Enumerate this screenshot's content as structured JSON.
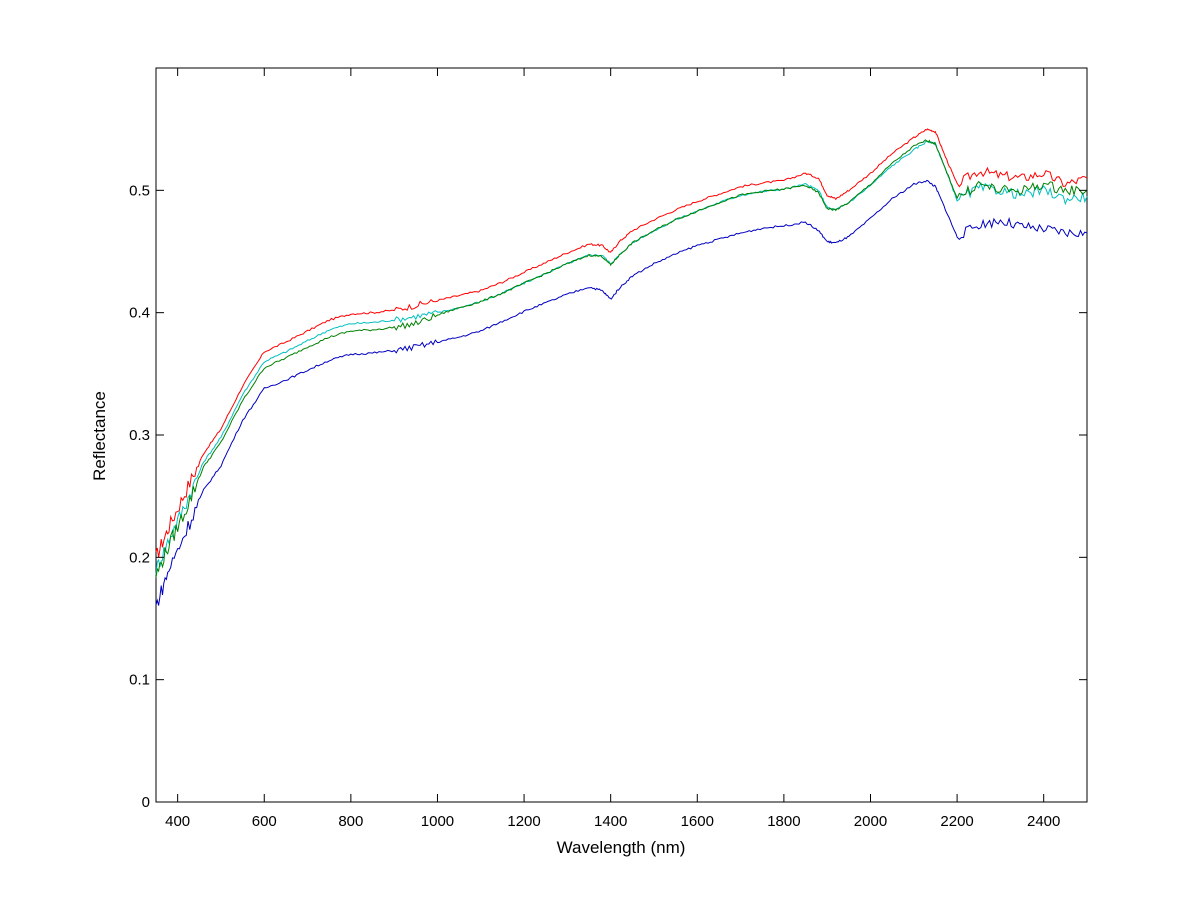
{
  "chart_data": {
    "type": "line",
    "title": "",
    "xlabel": "Wavelength (nm)",
    "ylabel": "Reflectance",
    "xlim": [
      350,
      2500
    ],
    "ylim": [
      0,
      0.6
    ],
    "xticks": [
      400,
      600,
      800,
      1000,
      1200,
      1400,
      1600,
      1800,
      2000,
      2200,
      2400
    ],
    "yticks": [
      0,
      0.1,
      0.2,
      0.3,
      0.4,
      0.5
    ],
    "ytick_labels": [
      "0",
      "0.1",
      "0.2",
      "0.3",
      "0.4",
      "0.5"
    ],
    "grid": false,
    "legend": "none",
    "x": [
      350,
      380,
      420,
      460,
      500,
      550,
      600,
      650,
      700,
      750,
      800,
      850,
      900,
      950,
      1000,
      1050,
      1100,
      1150,
      1200,
      1250,
      1300,
      1350,
      1380,
      1400,
      1420,
      1450,
      1500,
      1550,
      1600,
      1650,
      1700,
      1750,
      1800,
      1850,
      1880,
      1900,
      1920,
      1950,
      2000,
      2050,
      2100,
      2130,
      2150,
      2170,
      2200,
      2250,
      2300,
      2350,
      2400,
      2450,
      2500
    ],
    "series": [
      {
        "color": "#ff0000",
        "values": [
          0.2,
          0.225,
          0.255,
          0.285,
          0.305,
          0.34,
          0.368,
          0.376,
          0.385,
          0.394,
          0.399,
          0.4,
          0.402,
          0.406,
          0.41,
          0.414,
          0.418,
          0.425,
          0.433,
          0.441,
          0.449,
          0.456,
          0.455,
          0.449,
          0.458,
          0.467,
          0.476,
          0.484,
          0.491,
          0.497,
          0.503,
          0.506,
          0.508,
          0.514,
          0.51,
          0.496,
          0.493,
          0.5,
          0.514,
          0.53,
          0.543,
          0.55,
          0.548,
          0.53,
          0.505,
          0.516,
          0.512,
          0.51,
          0.514,
          0.505,
          0.51
        ]
      },
      {
        "color": "#00bfbf",
        "values": [
          0.19,
          0.215,
          0.245,
          0.278,
          0.298,
          0.333,
          0.36,
          0.368,
          0.377,
          0.386,
          0.391,
          0.392,
          0.394,
          0.397,
          0.4,
          0.404,
          0.409,
          0.416,
          0.424,
          0.432,
          0.44,
          0.447,
          0.447,
          0.44,
          0.447,
          0.457,
          0.467,
          0.476,
          0.483,
          0.49,
          0.496,
          0.499,
          0.501,
          0.505,
          0.5,
          0.486,
          0.484,
          0.49,
          0.504,
          0.52,
          0.533,
          0.54,
          0.538,
          0.52,
          0.492,
          0.502,
          0.5,
          0.496,
          0.5,
          0.493,
          0.495
        ]
      },
      {
        "color": "#008000",
        "values": [
          0.185,
          0.21,
          0.24,
          0.274,
          0.294,
          0.328,
          0.355,
          0.363,
          0.372,
          0.38,
          0.385,
          0.386,
          0.388,
          0.391,
          0.398,
          0.404,
          0.409,
          0.416,
          0.424,
          0.432,
          0.44,
          0.447,
          0.446,
          0.439,
          0.447,
          0.457,
          0.467,
          0.476,
          0.483,
          0.49,
          0.496,
          0.499,
          0.501,
          0.504,
          0.498,
          0.485,
          0.484,
          0.49,
          0.505,
          0.522,
          0.536,
          0.541,
          0.538,
          0.52,
          0.494,
          0.505,
          0.5,
          0.5,
          0.505,
          0.5,
          0.5
        ]
      },
      {
        "color": "#0000bf",
        "values": [
          0.16,
          0.19,
          0.222,
          0.255,
          0.275,
          0.312,
          0.338,
          0.345,
          0.353,
          0.361,
          0.366,
          0.367,
          0.369,
          0.372,
          0.376,
          0.38,
          0.385,
          0.393,
          0.401,
          0.408,
          0.415,
          0.421,
          0.418,
          0.411,
          0.42,
          0.43,
          0.44,
          0.448,
          0.455,
          0.46,
          0.465,
          0.469,
          0.471,
          0.474,
          0.467,
          0.458,
          0.457,
          0.462,
          0.477,
          0.493,
          0.505,
          0.508,
          0.503,
          0.487,
          0.462,
          0.472,
          0.475,
          0.47,
          0.468,
          0.465,
          0.465
        ]
      }
    ]
  }
}
